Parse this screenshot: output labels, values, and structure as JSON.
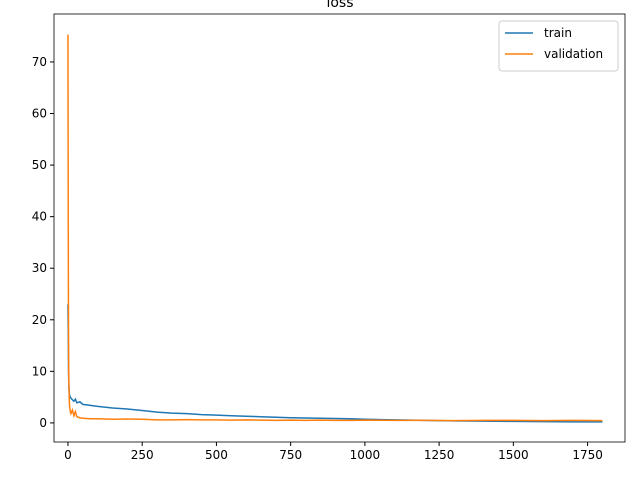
{
  "chart_data": {
    "type": "line",
    "title": "loss",
    "x": [
      0,
      1,
      2,
      3,
      5,
      8,
      10,
      15,
      20,
      25,
      30,
      40,
      50,
      75,
      100,
      150,
      200,
      250,
      300,
      350,
      400,
      450,
      500,
      550,
      600,
      650,
      700,
      750,
      800,
      850,
      900,
      950,
      1000,
      1100,
      1200,
      1300,
      1400,
      1500,
      1600,
      1700,
      1800
    ],
    "series": [
      {
        "name": "train",
        "color": "#1f77b4",
        "values": [
          23,
          18,
          10,
          7,
          5.5,
          5,
          4.8,
          4.5,
          4.2,
          4.6,
          3.9,
          4.1,
          3.6,
          3.4,
          3.2,
          2.9,
          2.7,
          2.4,
          2.1,
          1.9,
          1.8,
          1.6,
          1.5,
          1.4,
          1.3,
          1.2,
          1.1,
          1.0,
          0.95,
          0.9,
          0.85,
          0.8,
          0.7,
          0.6,
          0.5,
          0.4,
          0.35,
          0.3,
          0.25,
          0.2,
          0.2
        ]
      },
      {
        "name": "validation",
        "color": "#ff7f0e",
        "values": [
          75.3,
          40,
          15,
          8,
          3.5,
          2.2,
          1.8,
          2.5,
          1.4,
          2.2,
          1.2,
          1.0,
          0.9,
          0.8,
          0.8,
          0.7,
          0.75,
          0.7,
          0.6,
          0.6,
          0.65,
          0.6,
          0.6,
          0.55,
          0.6,
          0.55,
          0.5,
          0.55,
          0.5,
          0.55,
          0.5,
          0.5,
          0.55,
          0.5,
          0.5,
          0.45,
          0.5,
          0.5,
          0.45,
          0.5,
          0.45
        ]
      }
    ],
    "xlim": [
      -47,
      1876
    ],
    "ylim": [
      -3.7,
      79.3
    ],
    "xticks": [
      0,
      250,
      500,
      750,
      1000,
      1250,
      1500,
      1750
    ],
    "yticks": [
      0,
      10,
      20,
      30,
      40,
      50,
      60,
      70
    ],
    "grid": false,
    "legend": "upper right"
  }
}
